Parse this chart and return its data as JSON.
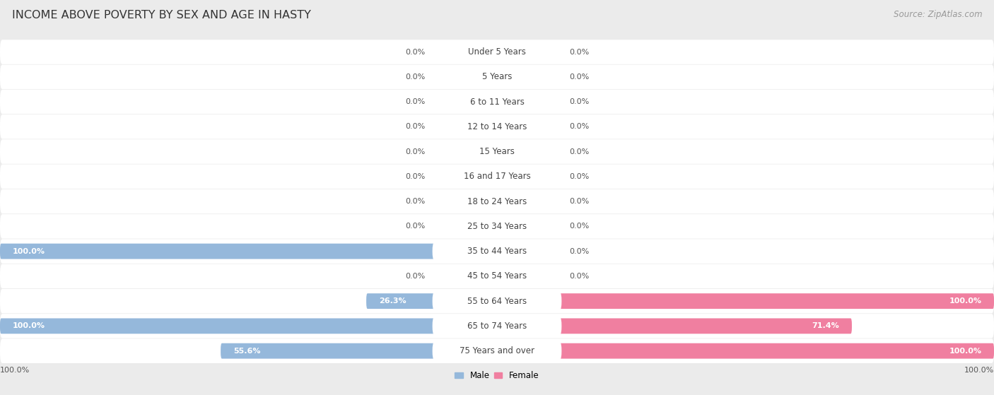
{
  "title": "INCOME ABOVE POVERTY BY SEX AND AGE IN HASTY",
  "source": "Source: ZipAtlas.com",
  "categories": [
    "Under 5 Years",
    "5 Years",
    "6 to 11 Years",
    "12 to 14 Years",
    "15 Years",
    "16 and 17 Years",
    "18 to 24 Years",
    "25 to 34 Years",
    "35 to 44 Years",
    "45 to 54 Years",
    "55 to 64 Years",
    "65 to 74 Years",
    "75 Years and over"
  ],
  "male_values": [
    0.0,
    0.0,
    0.0,
    0.0,
    0.0,
    0.0,
    0.0,
    0.0,
    100.0,
    0.0,
    26.3,
    100.0,
    55.6
  ],
  "female_values": [
    0.0,
    0.0,
    0.0,
    0.0,
    0.0,
    0.0,
    0.0,
    0.0,
    0.0,
    0.0,
    100.0,
    71.4,
    100.0
  ],
  "male_color": "#95b8db",
  "female_color": "#f07fa0",
  "male_label": "Male",
  "female_label": "Female",
  "background_color": "#ebebeb",
  "row_bg_color": "#ffffff",
  "row_sep_color": "#d8d8d8",
  "title_fontsize": 11.5,
  "cat_fontsize": 8.5,
  "value_fontsize": 8.0,
  "source_fontsize": 8.5,
  "xlim": 100.0,
  "bottom_labels": [
    "100.0%",
    "100.0%"
  ]
}
